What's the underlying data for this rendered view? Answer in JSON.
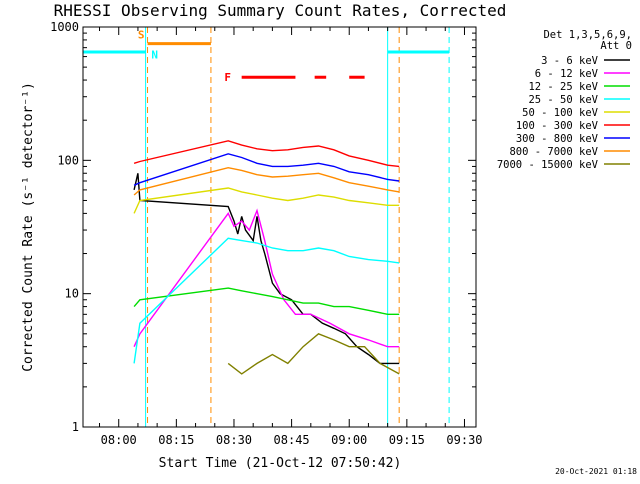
{
  "chart_data": {
    "type": "line",
    "title": "RHESSI Observing Summary Count Rates, Corrected",
    "xlabel": "Start Time (21-Oct-12 07:50:42)",
    "ylabel": "Corrected Count Rate (s⁻¹ detector⁻¹)",
    "y_scale": "log",
    "ylim": [
      1,
      1000
    ],
    "y_ticks": [
      "1",
      "10",
      "100",
      "1000"
    ],
    "x_ticks": [
      "08:00",
      "08:15",
      "08:30",
      "08:45",
      "09:00",
      "09:15",
      "09:30"
    ],
    "xlim": [
      "07:50:42",
      "09:33:00"
    ],
    "legend": {
      "placement": "right",
      "header": [
        "Det 1,3,5,6,9,",
        "Att 0"
      ]
    },
    "series": [
      {
        "name": "3 - 6 keV",
        "color": "#000000",
        "points": [
          [
            "08:04:00",
            60
          ],
          [
            "08:05:00",
            80
          ],
          [
            "08:05:30",
            50
          ],
          [
            "08:28:30",
            45
          ],
          [
            "08:30:00",
            35
          ],
          [
            "08:31:00",
            28
          ],
          [
            "08:32:00",
            38
          ],
          [
            "08:33:00",
            30
          ],
          [
            "08:35:00",
            25
          ],
          [
            "08:36:00",
            38
          ],
          [
            "08:37:00",
            25
          ],
          [
            "08:38:00",
            20
          ],
          [
            "08:40:00",
            12
          ],
          [
            "08:42:00",
            10
          ],
          [
            "08:45:00",
            9
          ],
          [
            "08:48:00",
            7
          ],
          [
            "08:50:00",
            7
          ],
          [
            "08:53:00",
            6
          ],
          [
            "08:56:00",
            5.5
          ],
          [
            "08:59:00",
            5
          ],
          [
            "09:02:00",
            4
          ],
          [
            "09:05:00",
            3.5
          ],
          [
            "09:08:00",
            3
          ],
          [
            "09:13:00",
            3
          ]
        ]
      },
      {
        "name": "6 - 12 keV",
        "color": "#ff00ff",
        "points": [
          [
            "08:04:00",
            4
          ],
          [
            "08:05:30",
            5
          ],
          [
            "08:28:30",
            40
          ],
          [
            "08:30:00",
            32
          ],
          [
            "08:32:00",
            35
          ],
          [
            "08:34:00",
            30
          ],
          [
            "08:36:00",
            42
          ],
          [
            "08:38:00",
            25
          ],
          [
            "08:40:00",
            14
          ],
          [
            "08:43:00",
            9
          ],
          [
            "08:46:00",
            7
          ],
          [
            "08:50:00",
            7
          ],
          [
            "08:55:00",
            6
          ],
          [
            "09:00:00",
            5
          ],
          [
            "09:05:00",
            4.5
          ],
          [
            "09:10:00",
            4
          ],
          [
            "09:13:00",
            4
          ]
        ]
      },
      {
        "name": "12 - 25 keV",
        "color": "#00dd00",
        "points": [
          [
            "08:04:00",
            8
          ],
          [
            "08:05:30",
            9
          ],
          [
            "08:28:30",
            11
          ],
          [
            "08:32:00",
            10.5
          ],
          [
            "08:36:00",
            10
          ],
          [
            "08:40:00",
            9.5
          ],
          [
            "08:44:00",
            9
          ],
          [
            "08:48:00",
            8.5
          ],
          [
            "08:52:00",
            8.5
          ],
          [
            "08:56:00",
            8
          ],
          [
            "09:00:00",
            8
          ],
          [
            "09:05:00",
            7.5
          ],
          [
            "09:10:00",
            7
          ],
          [
            "09:13:00",
            7
          ]
        ]
      },
      {
        "name": "25 - 50 keV",
        "color": "#00ffff",
        "points": [
          [
            "08:04:00",
            3
          ],
          [
            "08:05:30",
            6
          ],
          [
            "08:28:30",
            26
          ],
          [
            "08:32:00",
            25
          ],
          [
            "08:36:00",
            24
          ],
          [
            "08:40:00",
            22
          ],
          [
            "08:44:00",
            21
          ],
          [
            "08:48:00",
            21
          ],
          [
            "08:52:00",
            22
          ],
          [
            "08:56:00",
            21
          ],
          [
            "09:00:00",
            19
          ],
          [
            "09:05:00",
            18
          ],
          [
            "09:10:00",
            17.5
          ],
          [
            "09:13:00",
            17
          ]
        ]
      },
      {
        "name": "50 - 100 keV",
        "color": "#dddd00",
        "points": [
          [
            "08:04:00",
            40
          ],
          [
            "08:05:30",
            50
          ],
          [
            "08:28:30",
            62
          ],
          [
            "08:32:00",
            58
          ],
          [
            "08:36:00",
            55
          ],
          [
            "08:40:00",
            52
          ],
          [
            "08:44:00",
            50
          ],
          [
            "08:48:00",
            52
          ],
          [
            "08:52:00",
            55
          ],
          [
            "08:56:00",
            53
          ],
          [
            "09:00:00",
            50
          ],
          [
            "09:05:00",
            48
          ],
          [
            "09:10:00",
            46
          ],
          [
            "09:13:00",
            46
          ]
        ]
      },
      {
        "name": "100 - 300 keV",
        "color": "#ff0000",
        "points": [
          [
            "08:04:00",
            95
          ],
          [
            "08:05:30",
            98
          ],
          [
            "08:28:30",
            140
          ],
          [
            "08:32:00",
            130
          ],
          [
            "08:36:00",
            122
          ],
          [
            "08:40:00",
            118
          ],
          [
            "08:44:00",
            120
          ],
          [
            "08:48:00",
            125
          ],
          [
            "08:52:00",
            128
          ],
          [
            "08:56:00",
            120
          ],
          [
            "09:00:00",
            108
          ],
          [
            "09:05:00",
            100
          ],
          [
            "09:10:00",
            92
          ],
          [
            "09:13:00",
            90
          ]
        ]
      },
      {
        "name": "300 - 800 keV",
        "color": "#0000ff",
        "points": [
          [
            "08:04:00",
            65
          ],
          [
            "08:05:30",
            68
          ],
          [
            "08:28:30",
            112
          ],
          [
            "08:32:00",
            105
          ],
          [
            "08:36:00",
            95
          ],
          [
            "08:40:00",
            90
          ],
          [
            "08:44:00",
            90
          ],
          [
            "08:48:00",
            92
          ],
          [
            "08:52:00",
            95
          ],
          [
            "08:56:00",
            90
          ],
          [
            "09:00:00",
            82
          ],
          [
            "09:05:00",
            78
          ],
          [
            "09:10:00",
            72
          ],
          [
            "09:13:00",
            70
          ]
        ]
      },
      {
        "name": "800 - 7000 keV",
        "color": "#ff8c00",
        "points": [
          [
            "08:04:00",
            55
          ],
          [
            "08:05:30",
            60
          ],
          [
            "08:28:30",
            88
          ],
          [
            "08:32:00",
            84
          ],
          [
            "08:36:00",
            78
          ],
          [
            "08:40:00",
            75
          ],
          [
            "08:44:00",
            76
          ],
          [
            "08:48:00",
            78
          ],
          [
            "08:52:00",
            80
          ],
          [
            "08:56:00",
            74
          ],
          [
            "09:00:00",
            68
          ],
          [
            "09:05:00",
            64
          ],
          [
            "09:10:00",
            60
          ],
          [
            "09:13:00",
            58
          ]
        ]
      },
      {
        "name": "7000 - 15000 keV",
        "color": "#808000",
        "points": [
          [
            "08:28:30",
            3
          ],
          [
            "08:32:00",
            2.5
          ],
          [
            "08:36:00",
            3
          ],
          [
            "08:40:00",
            3.5
          ],
          [
            "08:44:00",
            3
          ],
          [
            "08:48:00",
            4
          ],
          [
            "08:52:00",
            5
          ],
          [
            "08:56:00",
            4.5
          ],
          [
            "09:00:00",
            4
          ],
          [
            "09:04:00",
            4
          ],
          [
            "09:08:00",
            3
          ],
          [
            "09:13:00",
            2.5
          ]
        ]
      }
    ],
    "saa_level": {
      "name": "SAA",
      "value": 650,
      "color": "#00ffff",
      "intervals": [
        [
          "07:50:42",
          "08:07:00"
        ],
        [
          "09:10:00",
          "09:26:00"
        ]
      ]
    },
    "night_level": {
      "value": 750,
      "color": "#ff8c00",
      "intervals": [
        [
          "08:07:30",
          "08:24:00"
        ]
      ]
    },
    "flare_level": {
      "value": 420,
      "color": "#ff0000",
      "intervals": [
        [
          "08:32:00",
          "08:46:00"
        ],
        [
          "08:51:00",
          "08:54:00"
        ],
        [
          "09:00:00",
          "09:04:00"
        ]
      ]
    },
    "vertical_markers": [
      {
        "time": "08:07:30",
        "color": "#ff8c00",
        "style": "dashed"
      },
      {
        "time": "08:24:00",
        "color": "#ff8c00",
        "style": "dashed"
      },
      {
        "time": "09:13:00",
        "color": "#ff8c00",
        "style": "dashed"
      },
      {
        "time": "08:07:00",
        "color": "#00ffff",
        "style": "solid"
      },
      {
        "time": "09:10:00",
        "color": "#00ffff",
        "style": "solid"
      },
      {
        "time": "09:26:00",
        "color": "#00ffff",
        "style": "dashed"
      }
    ],
    "marker_labels": [
      {
        "text": "S",
        "time": "08:05:00",
        "value": 880,
        "color": "#ff8c00"
      },
      {
        "text": "N",
        "time": "08:08:30",
        "value": 620,
        "color": "#00ffff"
      },
      {
        "text": "F",
        "time": "08:27:30",
        "value": 420,
        "color": "#ff0000"
      }
    ],
    "footer": "20-Oct-2021 01:18"
  }
}
